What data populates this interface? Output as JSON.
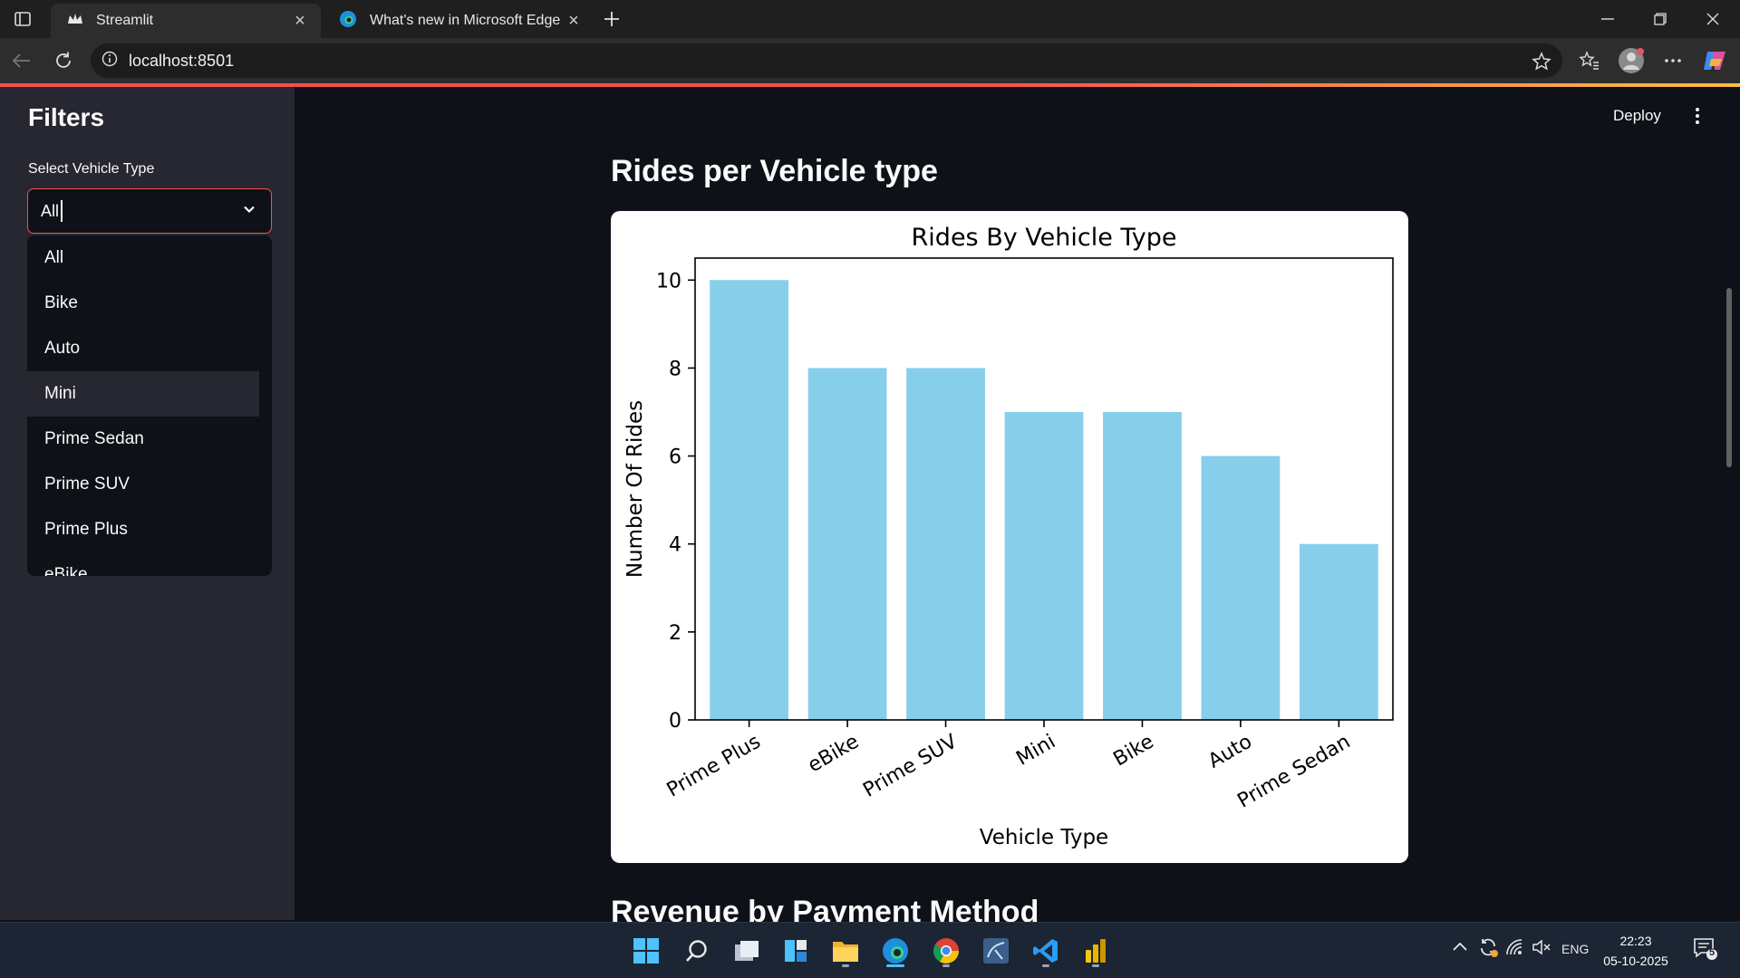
{
  "browser": {
    "tabs": [
      {
        "label": "Streamlit",
        "active": true
      },
      {
        "label": "What's new in Microsoft Edge",
        "active": false
      }
    ],
    "url": "localhost:8501"
  },
  "sidebar": {
    "title": "Filters",
    "select_label": "Select Vehicle Type",
    "select_value": "All",
    "options": [
      "All",
      "Bike",
      "Auto",
      "Mini",
      "Prime Sedan",
      "Prime SUV",
      "Prime Plus",
      "eBike"
    ],
    "hovered_option": "Mini"
  },
  "header": {
    "deploy_label": "Deploy"
  },
  "main": {
    "section_title": "Rides per Vehicle type",
    "next_section_title": "Revenue by Payment Method"
  },
  "chart_data": {
    "type": "bar",
    "title": "Rides By Vehicle Type",
    "xlabel": "Vehicle Type",
    "ylabel": "Number Of Rides",
    "categories": [
      "Prime Plus",
      "eBike",
      "Prime SUV",
      "Mini",
      "Bike",
      "Auto",
      "Prime Sedan"
    ],
    "values": [
      10,
      8,
      8,
      7,
      7,
      6,
      4
    ],
    "ylim": [
      0,
      10.5
    ],
    "yticks": [
      0,
      2,
      4,
      6,
      8,
      10
    ],
    "bar_color": "#87ceeb",
    "grid": false,
    "legend": "none"
  },
  "taskbar": {
    "language": "ENG",
    "time": "22:23",
    "date": "05-10-2025",
    "notification_count": "5"
  }
}
